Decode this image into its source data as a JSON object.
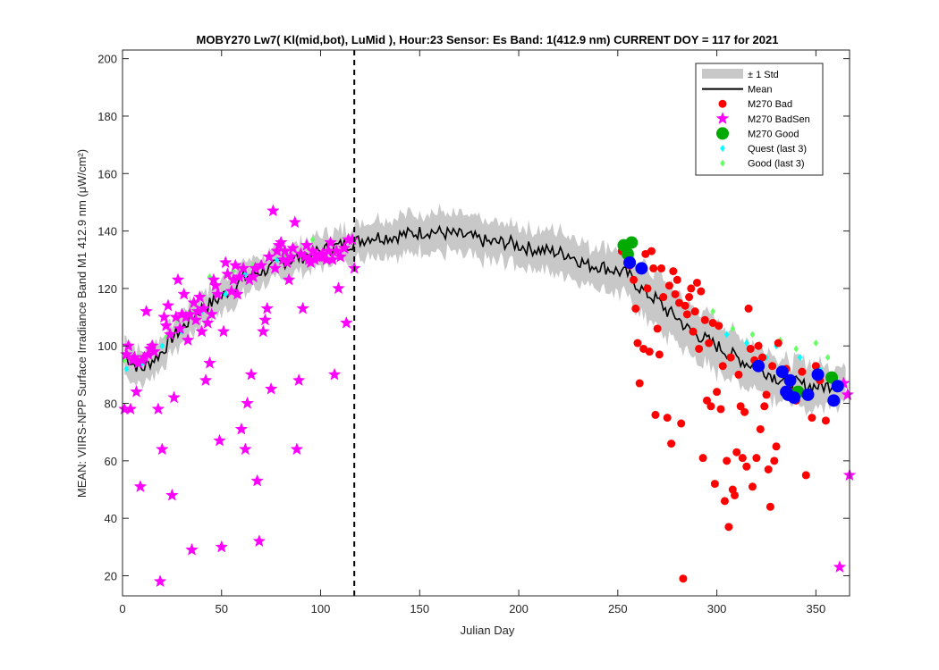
{
  "chart_data": {
    "type": "scatter",
    "title": "MOBY270   Lw7( Kl(mid,bot), LuMid ),   Hour:23 Sensor: Es Band: 1(412.9 nm)   CURRENT DOY = 117 for 2021",
    "xlabel": "Julian Day",
    "ylabel": "MEAN: VIIRS-NPP Surface Irradiance Band M1 412.9 nm (μW/cm²)",
    "xlim": [
      0,
      367
    ],
    "ylim": [
      13,
      203
    ],
    "xticks": [
      0,
      50,
      100,
      150,
      200,
      250,
      300,
      350
    ],
    "yticks": [
      20,
      40,
      60,
      80,
      100,
      120,
      140,
      160,
      180,
      200
    ],
    "current_doy": 117,
    "grid": false,
    "legend_position": "top-right",
    "colors": {
      "std_band": "#c8c8c8",
      "mean_line": "#000000",
      "bad": "#ff0000",
      "bad_sen": "#ff00ff",
      "good": "#00aa00",
      "quest": "#00ffff",
      "good_last3": "#66ff66",
      "blue": "#0000ff"
    },
    "legend": [
      {
        "key": "std",
        "label": "± 1 Std"
      },
      {
        "key": "mean",
        "label": "Mean"
      },
      {
        "key": "bad",
        "label": "M270 Bad"
      },
      {
        "key": "badsen",
        "label": "M270 BadSen"
      },
      {
        "key": "good",
        "label": "M270 Good"
      },
      {
        "key": "quest",
        "label": "Quest (last 3)"
      },
      {
        "key": "good3",
        "label": "Good (last 3)"
      }
    ],
    "mean_anchors": [
      [
        1,
        97
      ],
      [
        5,
        94
      ],
      [
        10,
        92
      ],
      [
        15,
        95
      ],
      [
        20,
        98
      ],
      [
        25,
        103
      ],
      [
        30,
        106
      ],
      [
        35,
        110
      ],
      [
        40,
        113
      ],
      [
        45,
        115
      ],
      [
        50,
        117
      ],
      [
        55,
        120
      ],
      [
        60,
        123
      ],
      [
        65,
        125
      ],
      [
        70,
        126
      ],
      [
        75,
        127
      ],
      [
        80,
        129
      ],
      [
        85,
        130
      ],
      [
        90,
        131
      ],
      [
        95,
        132
      ],
      [
        100,
        133
      ],
      [
        105,
        134
      ],
      [
        110,
        135
      ],
      [
        117,
        136
      ],
      [
        125,
        138
      ],
      [
        135,
        138
      ],
      [
        145,
        139
      ],
      [
        155,
        140
      ],
      [
        165,
        139
      ],
      [
        175,
        138
      ],
      [
        185,
        136
      ],
      [
        195,
        136
      ],
      [
        205,
        134
      ],
      [
        215,
        133
      ],
      [
        225,
        132
      ],
      [
        230,
        130
      ],
      [
        235,
        128
      ],
      [
        240,
        128
      ],
      [
        245,
        127
      ],
      [
        250,
        126
      ],
      [
        255,
        125
      ],
      [
        260,
        121
      ],
      [
        265,
        118
      ],
      [
        270,
        116
      ],
      [
        275,
        112
      ],
      [
        280,
        110
      ],
      [
        285,
        106
      ],
      [
        290,
        104
      ],
      [
        295,
        102
      ],
      [
        300,
        100
      ],
      [
        305,
        98
      ],
      [
        310,
        96
      ],
      [
        315,
        94
      ],
      [
        320,
        93
      ],
      [
        325,
        91
      ],
      [
        330,
        89
      ],
      [
        335,
        88
      ],
      [
        340,
        87
      ],
      [
        345,
        86
      ],
      [
        350,
        86
      ],
      [
        355,
        86
      ],
      [
        360,
        87
      ],
      [
        365,
        87
      ]
    ],
    "std_anchors": [
      [
        1,
        6
      ],
      [
        50,
        6
      ],
      [
        100,
        5
      ],
      [
        117,
        6
      ],
      [
        150,
        7
      ],
      [
        200,
        7
      ],
      [
        240,
        7
      ],
      [
        260,
        9
      ],
      [
        300,
        9
      ],
      [
        330,
        8
      ],
      [
        365,
        7
      ]
    ],
    "series": [
      {
        "name": "M270 Bad",
        "marker": "circle",
        "points": [
          [
            252,
            133
          ],
          [
            256,
            128
          ],
          [
            258,
            123
          ],
          [
            259,
            113
          ],
          [
            260,
            101
          ],
          [
            261,
            87
          ],
          [
            263,
            99
          ],
          [
            264,
            132
          ],
          [
            265,
            120
          ],
          [
            266,
            98
          ],
          [
            267,
            133
          ],
          [
            268,
            127
          ],
          [
            269,
            76
          ],
          [
            270,
            106
          ],
          [
            271,
            97
          ],
          [
            272,
            127
          ],
          [
            273,
            117
          ],
          [
            275,
            75
          ],
          [
            276,
            121
          ],
          [
            277,
            66
          ],
          [
            278,
            126
          ],
          [
            279,
            118
          ],
          [
            280,
            123
          ],
          [
            281,
            115
          ],
          [
            282,
            73
          ],
          [
            283,
            19
          ],
          [
            284,
            114
          ],
          [
            285,
            111
          ],
          [
            286,
            117
          ],
          [
            287,
            120
          ],
          [
            288,
            105
          ],
          [
            289,
            112
          ],
          [
            290,
            122
          ],
          [
            291,
            99
          ],
          [
            292,
            119
          ],
          [
            293,
            61
          ],
          [
            294,
            109
          ],
          [
            295,
            81
          ],
          [
            296,
            101
          ],
          [
            297,
            79
          ],
          [
            298,
            108
          ],
          [
            299,
            52
          ],
          [
            300,
            84
          ],
          [
            301,
            107
          ],
          [
            302,
            78
          ],
          [
            303,
            93
          ],
          [
            304,
            46
          ],
          [
            305,
            60
          ],
          [
            306,
            37
          ],
          [
            307,
            96
          ],
          [
            308,
            50
          ],
          [
            309,
            48
          ],
          [
            310,
            63
          ],
          [
            311,
            90
          ],
          [
            312,
            79
          ],
          [
            313,
            61
          ],
          [
            314,
            77
          ],
          [
            315,
            58
          ],
          [
            316,
            113
          ],
          [
            317,
            99
          ],
          [
            318,
            51
          ],
          [
            319,
            95
          ],
          [
            320,
            61
          ],
          [
            321,
            100
          ],
          [
            322,
            71
          ],
          [
            323,
            96
          ],
          [
            324,
            79
          ],
          [
            325,
            83
          ],
          [
            326,
            57
          ],
          [
            327,
            44
          ],
          [
            328,
            93
          ],
          [
            329,
            60
          ],
          [
            330,
            65
          ],
          [
            331,
            101
          ],
          [
            333,
            91
          ],
          [
            335,
            92
          ],
          [
            338,
            84
          ],
          [
            340,
            81
          ],
          [
            343,
            91
          ],
          [
            345,
            55
          ],
          [
            348,
            75
          ],
          [
            350,
            93
          ],
          [
            352,
            88
          ],
          [
            355,
            74
          ]
        ]
      },
      {
        "name": "M270 BadSen",
        "marker": "star",
        "points": [
          [
            1,
            78
          ],
          [
            2,
            97
          ],
          [
            3,
            100
          ],
          [
            4,
            78
          ],
          [
            5,
            95
          ],
          [
            6,
            96
          ],
          [
            7,
            84
          ],
          [
            8,
            94
          ],
          [
            9,
            51
          ],
          [
            10,
            95
          ],
          [
            11,
            96
          ],
          [
            12,
            112
          ],
          [
            13,
            97
          ],
          [
            14,
            99
          ],
          [
            15,
            100
          ],
          [
            16,
            98
          ],
          [
            18,
            78
          ],
          [
            19,
            18
          ],
          [
            20,
            64
          ],
          [
            21,
            110
          ],
          [
            22,
            107
          ],
          [
            23,
            114
          ],
          [
            24,
            104
          ],
          [
            25,
            48
          ],
          [
            26,
            82
          ],
          [
            27,
            110
          ],
          [
            28,
            123
          ],
          [
            29,
            106
          ],
          [
            30,
            111
          ],
          [
            31,
            118
          ],
          [
            32,
            110
          ],
          [
            33,
            102
          ],
          [
            34,
            111
          ],
          [
            35,
            29
          ],
          [
            36,
            115
          ],
          [
            37,
            109
          ],
          [
            38,
            112
          ],
          [
            39,
            117
          ],
          [
            40,
            105
          ],
          [
            41,
            113
          ],
          [
            42,
            88
          ],
          [
            43,
            108
          ],
          [
            44,
            94
          ],
          [
            45,
            111
          ],
          [
            46,
            123
          ],
          [
            47,
            121
          ],
          [
            48,
            118
          ],
          [
            49,
            67
          ],
          [
            50,
            30
          ],
          [
            51,
            105
          ],
          [
            52,
            129
          ],
          [
            53,
            125
          ],
          [
            55,
            119
          ],
          [
            56,
            123
          ],
          [
            57,
            128
          ],
          [
            58,
            118
          ],
          [
            59,
            124
          ],
          [
            60,
            71
          ],
          [
            61,
            127
          ],
          [
            62,
            64
          ],
          [
            63,
            80
          ],
          [
            64,
            123
          ],
          [
            65,
            90
          ],
          [
            66,
            124
          ],
          [
            67,
            127
          ],
          [
            68,
            53
          ],
          [
            69,
            32
          ],
          [
            70,
            128
          ],
          [
            71,
            105
          ],
          [
            72,
            109
          ],
          [
            73,
            113
          ],
          [
            74,
            131
          ],
          [
            75,
            85
          ],
          [
            76,
            147
          ],
          [
            77,
            127
          ],
          [
            78,
            133
          ],
          [
            79,
            135
          ],
          [
            80,
            136
          ],
          [
            81,
            130
          ],
          [
            82,
            133
          ],
          [
            83,
            129
          ],
          [
            84,
            123
          ],
          [
            85,
            131
          ],
          [
            86,
            134
          ],
          [
            87,
            143
          ],
          [
            88,
            64
          ],
          [
            89,
            88
          ],
          [
            90,
            132
          ],
          [
            91,
            113
          ],
          [
            92,
            131
          ],
          [
            93,
            135
          ],
          [
            94,
            130
          ],
          [
            95,
            129
          ],
          [
            96,
            133
          ],
          [
            97,
            130
          ],
          [
            98,
            131
          ],
          [
            99,
            131
          ],
          [
            100,
            131
          ],
          [
            101,
            132
          ],
          [
            103,
            130
          ],
          [
            104,
            133
          ],
          [
            105,
            136
          ],
          [
            106,
            130
          ],
          [
            107,
            90
          ],
          [
            108,
            133
          ],
          [
            109,
            120
          ],
          [
            110,
            131
          ],
          [
            112,
            134
          ],
          [
            113,
            108
          ],
          [
            114,
            137
          ],
          [
            116,
            137
          ],
          [
            117,
            127
          ],
          [
            362,
            23
          ],
          [
            364,
            87
          ],
          [
            366,
            83
          ],
          [
            367,
            55
          ]
        ]
      },
      {
        "name": "M270 Good",
        "marker": "circle-large",
        "points": [
          [
            253,
            135
          ],
          [
            255,
            132
          ],
          [
            257,
            136
          ],
          [
            341,
            84
          ],
          [
            358,
            89
          ]
        ]
      },
      {
        "name": "Blue",
        "marker": "circle-large-blue",
        "points": [
          [
            256,
            129
          ],
          [
            262,
            127
          ],
          [
            321,
            93
          ],
          [
            333,
            91
          ],
          [
            335,
            84
          ],
          [
            336,
            83
          ],
          [
            337,
            88
          ],
          [
            339,
            82
          ],
          [
            346,
            83
          ],
          [
            351,
            90
          ],
          [
            359,
            81
          ],
          [
            361,
            86
          ]
        ]
      },
      {
        "name": "Quest (last 3)",
        "marker": "diamond",
        "points": [
          [
            2,
            92
          ],
          [
            10,
            94
          ],
          [
            20,
            100
          ],
          [
            30,
            105
          ],
          [
            40,
            112
          ],
          [
            52,
            118
          ],
          [
            62,
            125
          ],
          [
            78,
            130
          ],
          [
            255,
            128
          ],
          [
            305,
            104
          ],
          [
            315,
            101
          ],
          [
            325,
            96
          ],
          [
            330,
            100
          ],
          [
            342,
            96
          ],
          [
            352,
            92
          ]
        ]
      },
      {
        "name": "Good (last 3)",
        "marker": "diamond",
        "points": [
          [
            1,
            95
          ],
          [
            8,
            96
          ],
          [
            15,
            99
          ],
          [
            22,
            103
          ],
          [
            28,
            109
          ],
          [
            34,
            112
          ],
          [
            44,
            124
          ],
          [
            56,
            126
          ],
          [
            66,
            128
          ],
          [
            82,
            131
          ],
          [
            96,
            137
          ],
          [
            254,
            131
          ],
          [
            298,
            112
          ],
          [
            308,
            106
          ],
          [
            318,
            104
          ],
          [
            332,
            102
          ],
          [
            340,
            99
          ],
          [
            350,
            101
          ],
          [
            356,
            96
          ]
        ]
      }
    ]
  }
}
